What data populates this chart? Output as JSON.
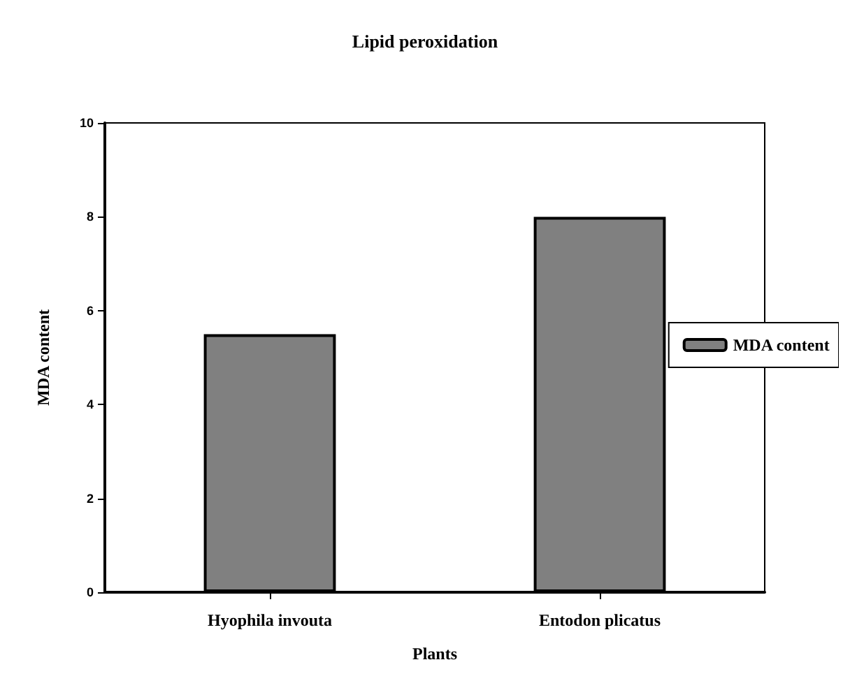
{
  "chart_data": {
    "type": "bar",
    "title": "Lipid peroxidation",
    "xlabel": "Plants",
    "ylabel": "MDA content",
    "categories": [
      "Hyophila invouta",
      "Entodon plicatus"
    ],
    "series": [
      {
        "name": "MDA content",
        "color": "#808080",
        "values": [
          5.5,
          8.0
        ]
      }
    ],
    "ylim": [
      0,
      10
    ],
    "yticks": [
      0,
      2,
      4,
      6,
      8,
      10
    ],
    "grid": false,
    "legend": "right"
  }
}
